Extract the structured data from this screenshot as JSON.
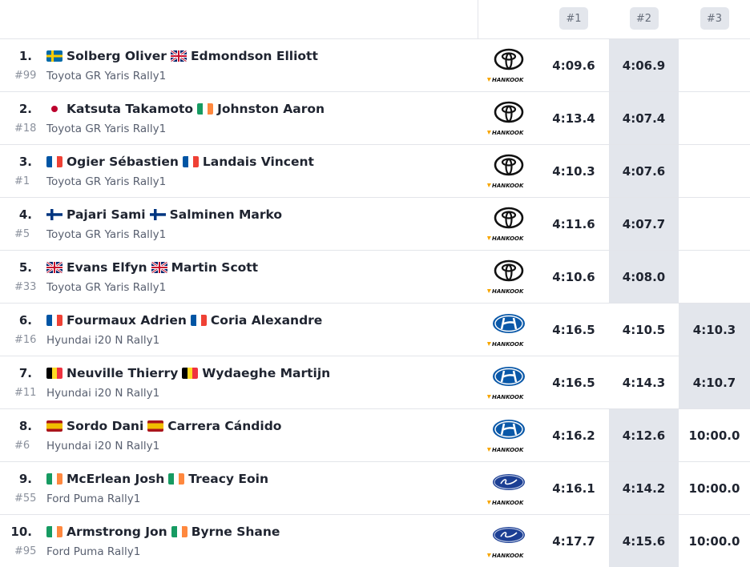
{
  "header": {
    "columns": [
      "#1",
      "#2",
      "#3"
    ]
  },
  "tyre": "HANKOOK",
  "rows": [
    {
      "pos": "1.",
      "driver": "Solberg Oliver",
      "codriver": "Edmondson Elliott",
      "number": "#99",
      "car": "Toyota GR Yaris Rally1",
      "times": [
        "4:09.6",
        "4:06.9",
        null
      ]
    },
    {
      "pos": "2.",
      "driver": "Katsuta Takamoto",
      "codriver": "Johnston Aaron",
      "number": "#18",
      "car": "Toyota GR Yaris Rally1",
      "times": [
        "4:13.4",
        "4:07.4",
        null
      ]
    },
    {
      "pos": "3.",
      "driver": "Ogier Sébastien",
      "codriver": "Landais Vincent",
      "number": "#1",
      "car": "Toyota GR Yaris Rally1",
      "times": [
        "4:10.3",
        "4:07.6",
        null
      ]
    },
    {
      "pos": "4.",
      "driver": "Pajari Sami",
      "codriver": "Salminen Marko",
      "number": "#5",
      "car": "Toyota GR Yaris Rally1",
      "times": [
        "4:11.6",
        "4:07.7",
        null
      ]
    },
    {
      "pos": "5.",
      "driver": "Evans Elfyn",
      "codriver": "Martin Scott",
      "number": "#33",
      "car": "Toyota GR Yaris Rally1",
      "times": [
        "4:10.6",
        "4:08.0",
        null
      ]
    },
    {
      "pos": "6.",
      "driver": "Fourmaux Adrien",
      "codriver": "Coria Alexandre",
      "number": "#16",
      "car": "Hyundai i20 N Rally1",
      "times": [
        "4:16.5",
        "4:10.5",
        "4:10.3"
      ]
    },
    {
      "pos": "7.",
      "driver": "Neuville Thierry",
      "codriver": "Wydaeghe Martijn",
      "number": "#11",
      "car": "Hyundai i20 N Rally1",
      "times": [
        "4:16.5",
        "4:14.3",
        "4:10.7"
      ]
    },
    {
      "pos": "8.",
      "driver": "Sordo Dani",
      "codriver": "Carrera Cándido",
      "number": "#6",
      "car": "Hyundai i20 N Rally1",
      "times": [
        "4:16.2",
        "4:12.6",
        "10:00.0"
      ]
    },
    {
      "pos": "9.",
      "driver": "McErlean Josh",
      "codriver": "Treacy Eoin",
      "number": "#55",
      "car": "Ford Puma Rally1",
      "times": [
        "4:16.1",
        "4:14.2",
        "10:00.0"
      ]
    },
    {
      "pos": "10.",
      "driver": "Armstrong Jon",
      "codriver": "Byrne Shane",
      "number": "#95",
      "car": "Ford Puma Rally1",
      "times": [
        "4:17.7",
        "4:15.6",
        "10:00.0"
      ]
    }
  ]
}
